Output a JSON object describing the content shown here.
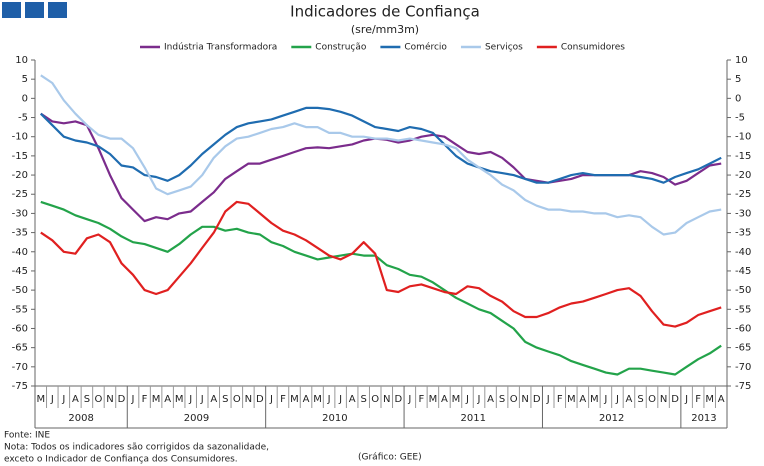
{
  "chart_data": {
    "type": "line",
    "title": "Indicadores de Confiança",
    "subtitle": "(sre/mm3m)",
    "categories": [
      "M",
      "J",
      "J",
      "A",
      "S",
      "O",
      "N",
      "D",
      "J",
      "F",
      "M",
      "A",
      "M",
      "J",
      "J",
      "A",
      "S",
      "O",
      "N",
      "D",
      "J",
      "F",
      "M",
      "A",
      "M",
      "J",
      "J",
      "A",
      "S",
      "O",
      "N",
      "D",
      "J",
      "F",
      "M",
      "A",
      "M",
      "J",
      "J",
      "A",
      "S",
      "O",
      "N",
      "D",
      "J",
      "F",
      "M",
      "A",
      "M",
      "J",
      "J",
      "A",
      "S",
      "O",
      "N",
      "D",
      "J",
      "F",
      "M",
      "A"
    ],
    "years": [
      "2008",
      "2009",
      "2010",
      "2011",
      "2012",
      "2013"
    ],
    "series": [
      {
        "name": "Indústria Transformadora",
        "color": "#7b2c8c",
        "values": [
          -4,
          -6,
          -6.5,
          -6,
          -7,
          -13,
          -20,
          -26,
          -29,
          -32,
          -31,
          -31.5,
          -30,
          -29.5,
          -27,
          -24.5,
          -21,
          -19,
          -17,
          -17,
          -16,
          -15,
          -14,
          -13,
          -12.8,
          -13,
          -12.5,
          -12,
          -11,
          -10.5,
          -10.8,
          -11.5,
          -11,
          -10,
          -9.5,
          -10,
          -12,
          -14,
          -14.5,
          -14,
          -15.5,
          -18,
          -21,
          -21.5,
          -22,
          -21.5,
          -21,
          -20,
          -20,
          -20,
          -20,
          -20,
          -19,
          -19.5,
          -20.5,
          -22.5,
          -21.5,
          -19.5,
          -17.5,
          -17
        ]
      },
      {
        "name": "Construção",
        "color": "#23a34a",
        "values": [
          -27,
          -28,
          -29,
          -30.5,
          -31.5,
          -32.5,
          -34,
          -36,
          -37.5,
          -38,
          -39,
          -40,
          -38,
          -35.5,
          -33.5,
          -33.5,
          -34.5,
          -34,
          -35,
          -35.5,
          -37.5,
          -38.5,
          -40,
          -41,
          -42,
          -41.5,
          -41,
          -40.5,
          -41,
          -41,
          -43.5,
          -44.5,
          -46,
          -46.5,
          -48,
          -50,
          -52,
          -53.5,
          -55,
          -56,
          -58,
          -60,
          -63.5,
          -65,
          -66,
          -67,
          -68.5,
          -69.5,
          -70.5,
          -71.5,
          -72,
          -70.5,
          -70.5,
          -71,
          -71.5,
          -72,
          -70,
          -68,
          -66.5,
          -64.5
        ]
      },
      {
        "name": "Comércio",
        "color": "#1f6cb0",
        "values": [
          -4,
          -7,
          -10,
          -11,
          -11.5,
          -12.5,
          -14.5,
          -17.5,
          -18,
          -20,
          -20.5,
          -21.5,
          -20,
          -17.5,
          -14.5,
          -12,
          -9.5,
          -7.5,
          -6.5,
          -6,
          -5.5,
          -4.5,
          -3.5,
          -2.5,
          -2.5,
          -2.8,
          -3.5,
          -4.5,
          -6,
          -7.5,
          -8,
          -8.5,
          -7.5,
          -8,
          -9,
          -12,
          -15,
          -17,
          -18,
          -19,
          -19.5,
          -20,
          -21,
          -22,
          -22,
          -21,
          -20,
          -19.5,
          -20,
          -20,
          -20,
          -20,
          -20.5,
          -21,
          -22,
          -20.5,
          -19.5,
          -18.5,
          -17,
          -15.5
        ]
      },
      {
        "name": "Serviços",
        "color": "#a9c9ea",
        "values": [
          6,
          4,
          -0.5,
          -4,
          -7,
          -9.5,
          -10.5,
          -10.5,
          -13,
          -18,
          -23.5,
          -25,
          -24,
          -23,
          -20,
          -15.5,
          -12.5,
          -10.5,
          -10,
          -9,
          -8,
          -7.5,
          -6.5,
          -7.5,
          -7.5,
          -9,
          -9,
          -10,
          -10,
          -10.5,
          -10.5,
          -11,
          -10.5,
          -11,
          -11.5,
          -12,
          -13,
          -16,
          -18,
          -20,
          -22.5,
          -24,
          -26.5,
          -28,
          -29,
          -29,
          -29.5,
          -29.5,
          -30,
          -30,
          -31,
          -30.5,
          -31,
          -33.5,
          -35.5,
          -35,
          -32.5,
          -31,
          -29.5,
          -29
        ]
      },
      {
        "name": "Consumidores",
        "color": "#e02020",
        "values": [
          -35,
          -37,
          -40,
          -40.5,
          -36.5,
          -35.5,
          -37.5,
          -43,
          -46,
          -50,
          -51,
          -50,
          -46.5,
          -43,
          -39,
          -35,
          -29.5,
          -27,
          -27.5,
          -30,
          -32.5,
          -34.5,
          -35.5,
          -37,
          -39,
          -41,
          -42,
          -40.5,
          -37.5,
          -40.5,
          -50,
          -50.5,
          -49,
          -48.5,
          -49.5,
          -50.5,
          -51,
          -49,
          -49.5,
          -51.5,
          -53,
          -55.5,
          -57,
          -57,
          -56,
          -54.5,
          -53.5,
          -53,
          -52,
          -51,
          -50,
          -49.5,
          -51.5,
          -55.5,
          -59,
          -59.5,
          -58.5,
          -56.5,
          -55.5,
          -54.5
        ]
      }
    ],
    "ylim": [
      -75,
      10
    ],
    "yticks": [
      10,
      5,
      0,
      -5,
      -10,
      -15,
      -20,
      -25,
      -30,
      -35,
      -40,
      -45,
      -50,
      -55,
      -60,
      -65,
      -70,
      -75
    ],
    "legend": "top",
    "source": "Fonte: INE",
    "notes": [
      "Nota: Todos os indicadores são corrigidos da sazonalidade,",
      "exceto o Indicador de Confiança dos Consumidores."
    ],
    "credit": "(Gráfico: GEE)"
  }
}
